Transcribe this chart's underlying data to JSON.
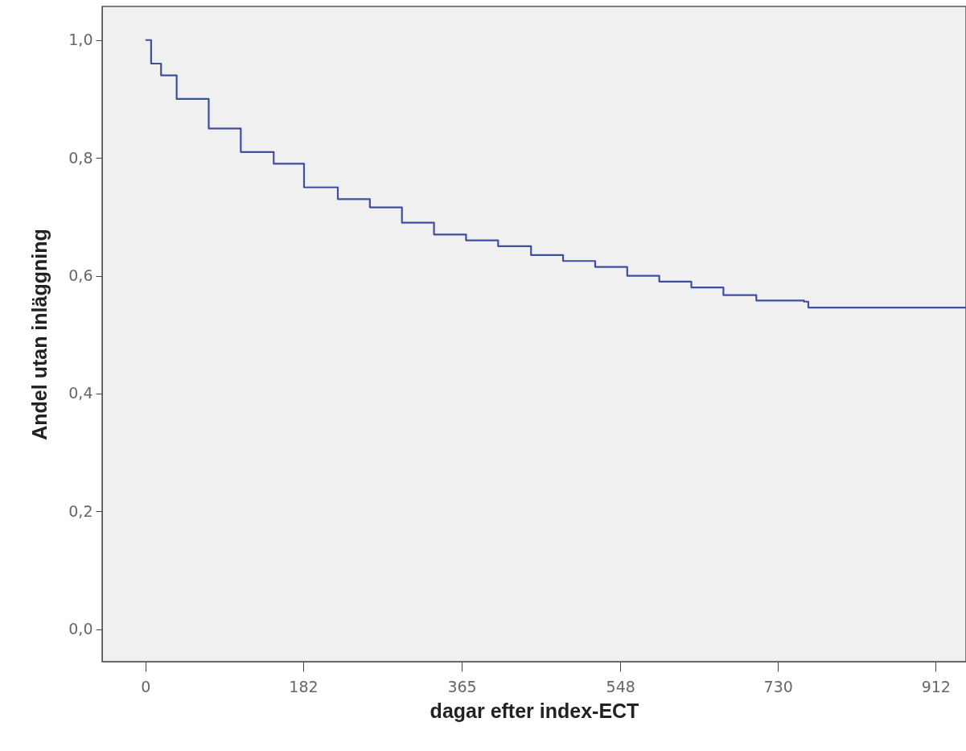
{
  "chart_data": {
    "type": "step",
    "xlabel": "dagar efter index-ECT",
    "ylabel": "Andel utan inläggning",
    "x": [
      0,
      6.5,
      18,
      36,
      73,
      110,
      148,
      183,
      222,
      259,
      296,
      333,
      370,
      407,
      445,
      482,
      519,
      556,
      593,
      630,
      667,
      705,
      760,
      765,
      947
    ],
    "series": [
      {
        "color": "#3f4fa0",
        "values": [
          1.0,
          0.96,
          0.94,
          0.9,
          0.85,
          0.81,
          0.79,
          0.75,
          0.73,
          0.716,
          0.69,
          0.67,
          0.66,
          0.65,
          0.635,
          0.625,
          0.615,
          0.6,
          0.59,
          0.58,
          0.567,
          0.558,
          0.556,
          0.546,
          0.545
        ]
      }
    ],
    "xlim": [
      -50,
      947
    ],
    "xticks": [
      0,
      182,
      365,
      548,
      730,
      912
    ],
    "ylim": [
      -0.055,
      1.057
    ],
    "yticks": [
      {
        "value": 0,
        "label": "0,0"
      },
      {
        "value": 0.2,
        "label": "0,2"
      },
      {
        "value": 0.4,
        "label": "0,4"
      },
      {
        "value": 0.6,
        "label": "0,6"
      },
      {
        "value": 0.8,
        "label": "0,8"
      },
      {
        "value": 1.0,
        "label": "1,0"
      }
    ],
    "grid": false
  }
}
